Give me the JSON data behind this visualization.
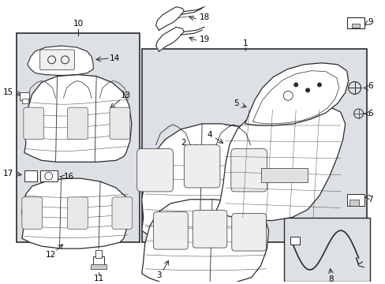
{
  "background_color": "#ffffff",
  "diagram_bg": "#dde0e5",
  "line_color": "#2a2a2a",
  "text_color": "#000000",
  "figsize": [
    4.89,
    3.6
  ],
  "dpi": 100
}
